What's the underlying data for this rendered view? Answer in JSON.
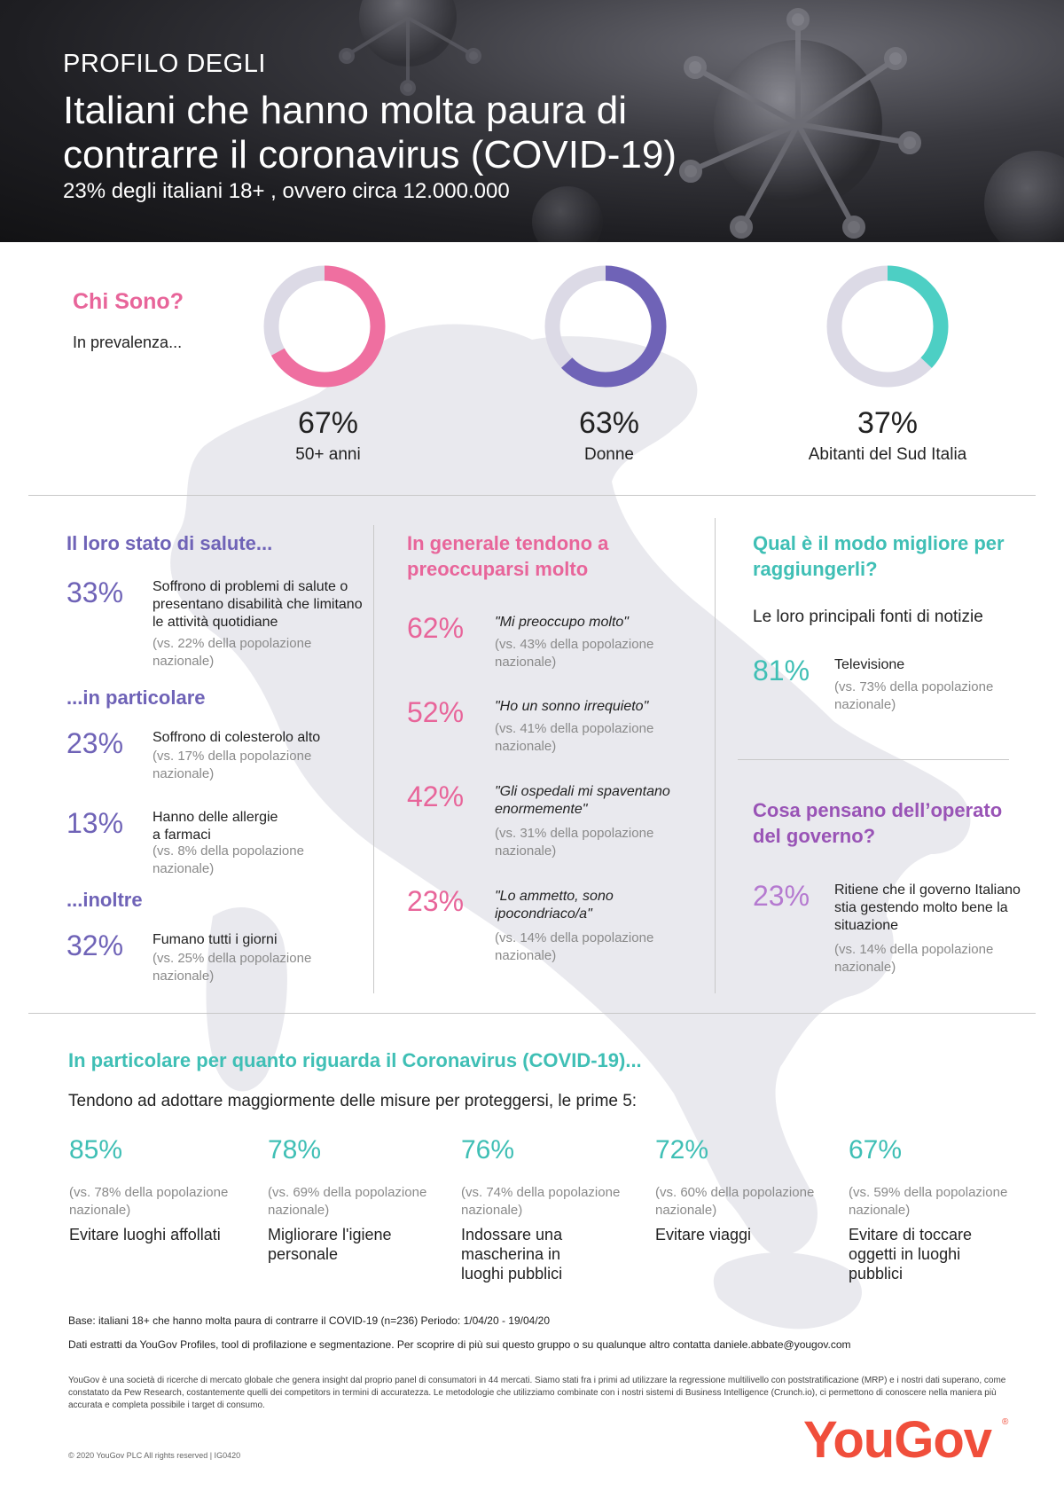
{
  "header": {
    "kicker": "PROFILO DEGLI",
    "title": "Italiani che hanno molta paura di contrarre il coronavirus (COVID-19)",
    "subtitle": "23% degli italiani 18+ , ovvero circa 12.000.000"
  },
  "who": {
    "title": "Chi Sono?",
    "subtitle": "In prevalenza...",
    "donuts": [
      {
        "value": "67%",
        "fraction": 0.67,
        "label": "50+ anni",
        "color": "#ef6fa0"
      },
      {
        "value": "63%",
        "fraction": 0.63,
        "label": "Donne",
        "color": "#6f63b7"
      },
      {
        "value": "37%",
        "fraction": 0.37,
        "label": "Abitanti del Sud Italia",
        "color": "#4dcfc4"
      }
    ],
    "track_color": "#dcdae6"
  },
  "health": {
    "title": "Il loro stato di salute...",
    "s1": {
      "pct": "33%",
      "text": "Soffrono di problemi di salute o presentano disabilità che limitano le attività quotidiane",
      "vs": "(vs. 22% della popolazione nazionale)"
    },
    "particolare": "...in particolare",
    "s2": {
      "pct": "23%",
      "text": "Soffrono di colesterolo alto",
      "vs": "(vs. 17% della popolazione nazionale)"
    },
    "s3": {
      "pct": "13%",
      "text": "Hanno delle allergie a farmaci",
      "vs": "(vs. 8% della popolazione nazionale)"
    },
    "inoltre": "...inoltre",
    "s4": {
      "pct": "32%",
      "text": "Fumano tutti i giorni",
      "vs": "(vs. 25% della popolazione nazionale)"
    }
  },
  "worry": {
    "title": "In generale tendono a preoccuparsi molto",
    "s1": {
      "pct": "62%",
      "text": "\"Mi preoccupo molto\"",
      "vs": "(vs. 43% della popolazione nazionale)"
    },
    "s2": {
      "pct": "52%",
      "text": "\"Ho un sonno irrequieto\"",
      "vs": "(vs. 41% della popolazione nazionale)"
    },
    "s3": {
      "pct": "42%",
      "text": "\"Gli ospedali mi spaventano enormemente\"",
      "vs": "(vs. 31% della popolazione nazionale)"
    },
    "s4": {
      "pct": "23%",
      "text": "\"Lo ammetto, sono ipocondriaco/a\"",
      "vs": "(vs. 14% della popolazione nazionale)"
    }
  },
  "reach": {
    "title": "Qual è il modo migliore per raggiungerli?",
    "sub": "Le loro principali fonti di notizie",
    "s1": {
      "pct": "81%",
      "text": "Televisione",
      "vs": "(vs. 73% della popolazione nazionale)"
    }
  },
  "gov": {
    "title": "Cosa pensano dell’operato del governo?",
    "s1": {
      "pct": "23%",
      "text": "Ritiene che il governo Italiano stia gestendo molto bene la situazione",
      "vs": "(vs. 14% della popolazione nazionale)"
    }
  },
  "covid": {
    "title": "In particolare per quanto riguarda il Coronavirus (COVID-19)...",
    "subtitle": "Tendono ad adottare maggiormente delle misure per proteggersi, le prime 5:",
    "measures": [
      {
        "pct": "85%",
        "vs": "(vs. 78% della popolazione nazionale)",
        "label": "Evitare luoghi affollati"
      },
      {
        "pct": "78%",
        "vs": "(vs. 69% della popolazione nazionale)",
        "label": "Migliorare l'igiene personale"
      },
      {
        "pct": "76%",
        "vs": "(vs. 74% della popolazione nazionale)",
        "label": "Indossare una mascherina in luoghi pubblici"
      },
      {
        "pct": "72%",
        "vs": "(vs. 60% della popolazione nazionale)",
        "label": "Evitare viaggi"
      },
      {
        "pct": "67%",
        "vs": "(vs. 59% della popolazione nazionale)",
        "label": "Evitare di toccare oggetti in luoghi pubblici"
      }
    ]
  },
  "footer": {
    "base": "Base: italiani 18+ che hanno molta paura di contrarre il COVID-19 (n=236) Periodo: 1/04/20 - 19/04/20",
    "data": "Dati estratti da YouGov Profiles, tool di profilazione e segmentazione. Per scoprire di più sui questo gruppo o su qualunque altro contatta daniele.abbate@yougov.com",
    "about": "YouGov è una società di ricerche di mercato globale che genera insight dal proprio panel di consumatori in 44 mercati. Siamo stati fra i primi ad utilizzare la regressione multilivello con poststratificazione (MRP) e i nostri dati superano, come constatato da Pew Research, costantemente quelli dei competitors in termini di accuratezza. Le metodologie che utilizziamo combinate con i nostri sistemi di Business Intelligence (Crunch.io), ci permettono di conoscere nella maniera più accurata e completa possibile i target di consumo.",
    "copyright": "© 2020 YouGov PLC All rights reserved | IG0420",
    "logo": "YouGov",
    "reg": "®"
  }
}
